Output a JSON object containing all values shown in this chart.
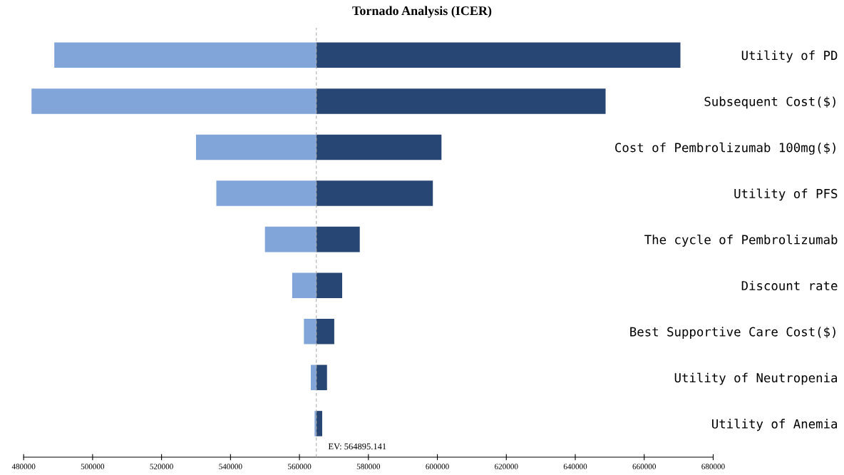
{
  "chart_data": {
    "type": "bar",
    "orientation": "horizontal",
    "title": "Tornado Analysis (ICER)",
    "categories": [
      "Utility of PD",
      "Subsequent Cost($)",
      "Cost of Pembrolizumab 100mg($)",
      "Utility of PFS",
      "The cycle of Pembrolizumab",
      "Discount rate",
      "Best Supportive Care Cost($)",
      "Utility of Neutropenia",
      "Utility of Anemia"
    ],
    "series": [
      {
        "color": "#82a5d9",
        "base": [
          564895.141,
          564895.141,
          564895.141,
          564895.141,
          564895.141,
          564895.141,
          564895.141,
          564895.141,
          564895.141
        ],
        "values": [
          -76000,
          -82600,
          -34900,
          -29000,
          -14900,
          -7000,
          -3600,
          -1600,
          -500
        ]
      },
      {
        "color": "#284673",
        "base": [
          564895.141,
          564895.141,
          564895.141,
          564895.141,
          564895.141,
          564895.141,
          564895.141,
          564895.141,
          564895.141
        ],
        "values": [
          105600,
          83900,
          36300,
          33800,
          12600,
          7500,
          5200,
          3100,
          1700
        ]
      }
    ],
    "xlim": [
      480000,
      680000
    ],
    "xticks": [
      480000,
      500000,
      520000,
      540000,
      560000,
      580000,
      600000,
      620000,
      640000,
      660000,
      680000
    ],
    "ref_lines": [
      {
        "axis": "x",
        "value": 564895.141,
        "label": "EV: 564895.141",
        "color": "#b0b0b0",
        "line_style": "dashed"
      }
    ],
    "grid": false,
    "legend": false
  }
}
